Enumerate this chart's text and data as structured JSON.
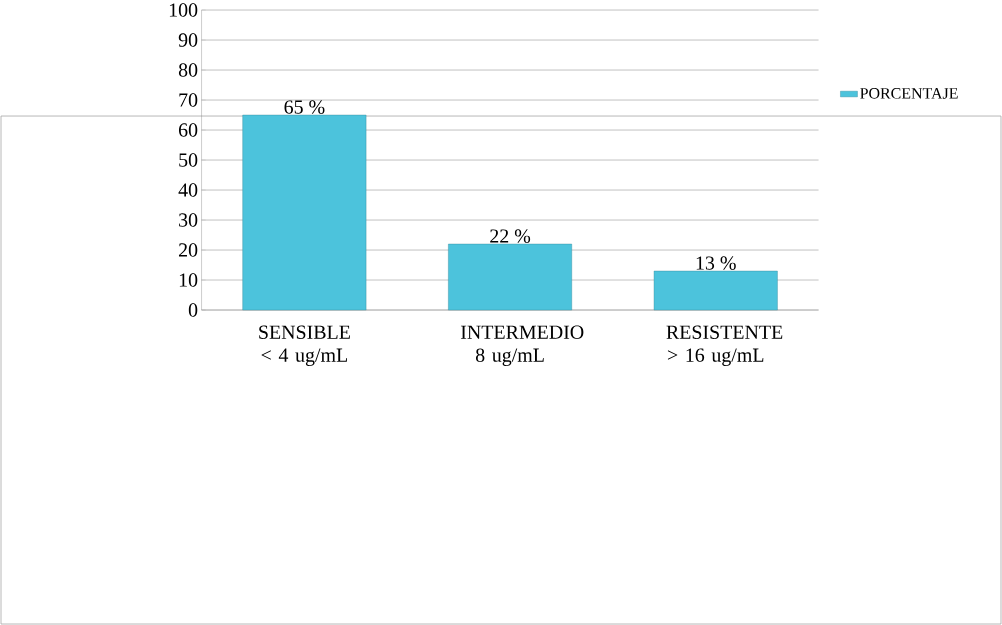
{
  "chart_data": {
    "type": "bar",
    "categories": [
      "SENSIBLE < 4 ug/mL",
      "INTERMEDIO 8 ug/mL",
      "RESISTENTE > 16 ug/mL"
    ],
    "series": [
      {
        "name": "PORCENTAJE",
        "color": "#4cc3dc",
        "values": [
          65,
          22,
          13
        ],
        "value_labels": [
          "65 %",
          "22 %",
          "13 %"
        ]
      }
    ],
    "ylim": [
      0,
      100
    ],
    "yticks": [
      0,
      10,
      20,
      30,
      40,
      50,
      60,
      70,
      80,
      90,
      100
    ],
    "grid": "y",
    "legend": "right"
  }
}
